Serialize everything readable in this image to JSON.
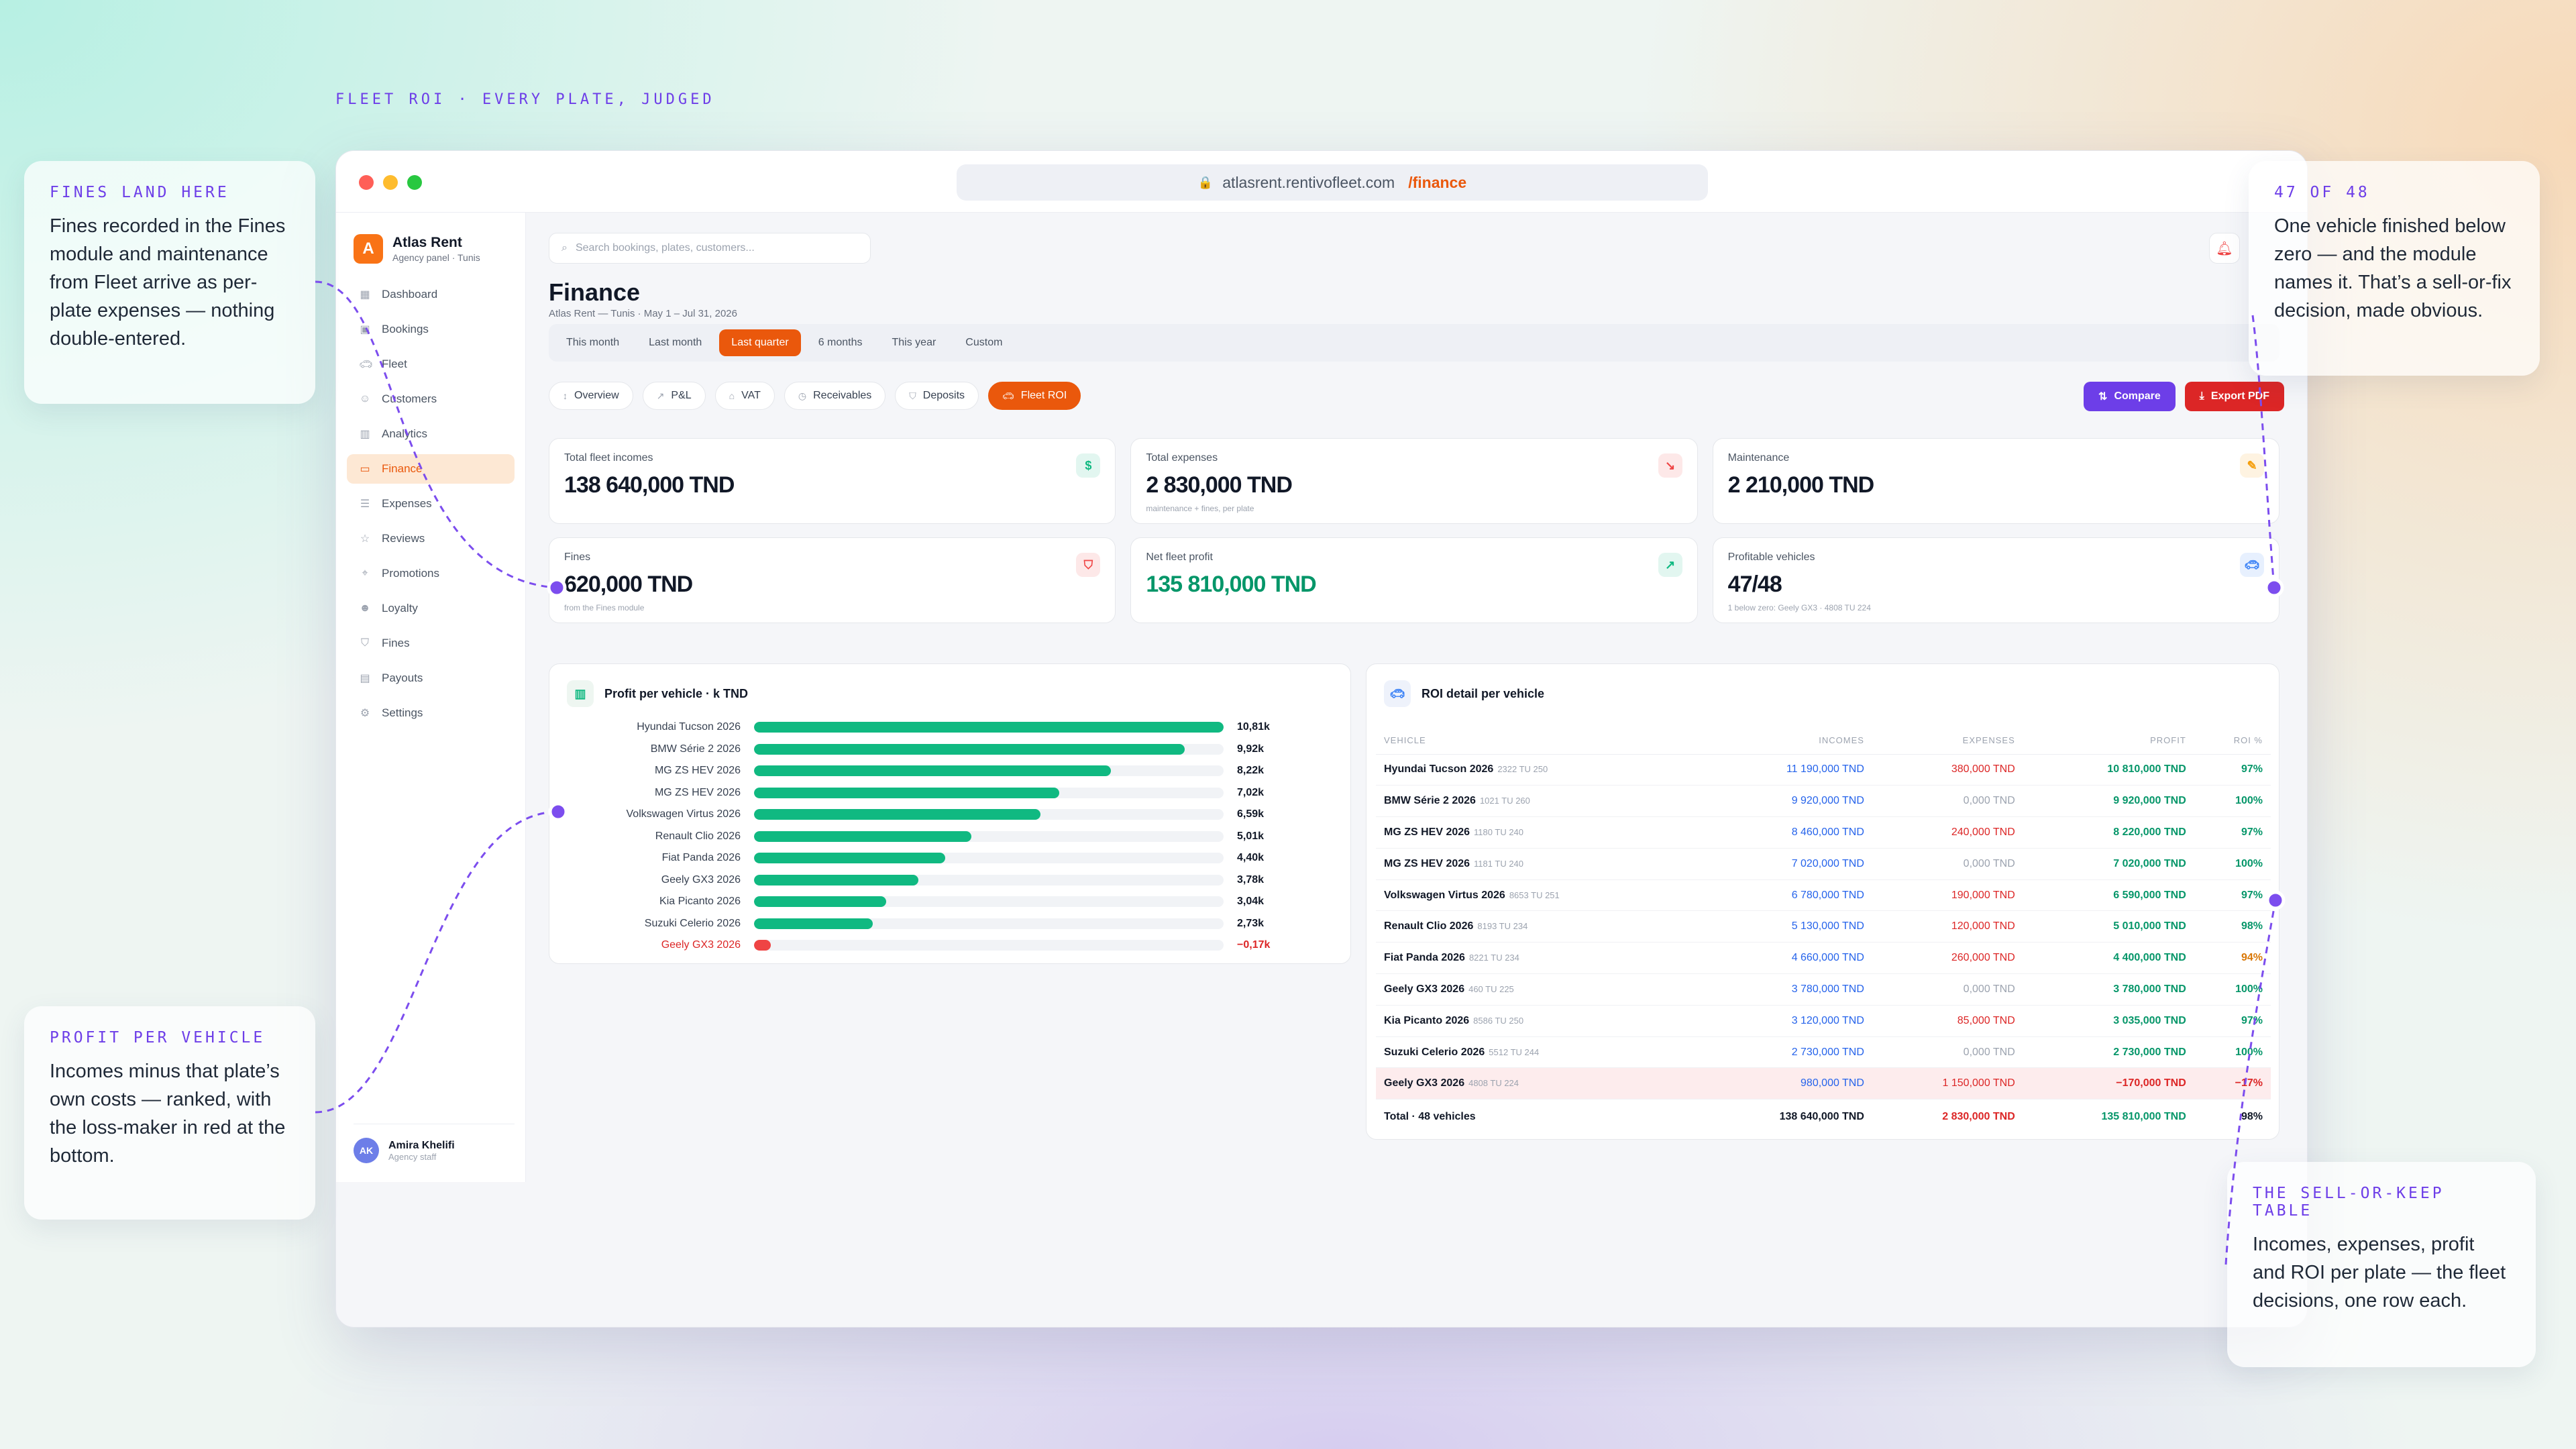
{
  "tagline": "FLEET ROI · EVERY PLATE, JUDGED",
  "browser": {
    "url_host": "atlasrent.rentivofleet.com",
    "url_path": "/finance",
    "lock_icon": "lock-icon"
  },
  "sidebar": {
    "brand_letter": "A",
    "brand_name": "Atlas Rent",
    "brand_sub": "Agency panel · Tunis",
    "items": [
      {
        "label": "Dashboard",
        "icon": "grid-icon"
      },
      {
        "label": "Bookings",
        "icon": "calendar-icon"
      },
      {
        "label": "Fleet",
        "icon": "car-icon"
      },
      {
        "label": "Customers",
        "icon": "users-icon"
      },
      {
        "label": "Analytics",
        "icon": "chart-icon"
      },
      {
        "label": "Finance",
        "icon": "wallet-icon",
        "active": true
      },
      {
        "label": "Expenses",
        "icon": "receipt-icon"
      },
      {
        "label": "Reviews",
        "icon": "star-icon"
      },
      {
        "label": "Promotions",
        "icon": "tag-icon"
      },
      {
        "label": "Loyalty",
        "icon": "person-icon"
      },
      {
        "label": "Fines",
        "icon": "shield-icon"
      },
      {
        "label": "Payouts",
        "icon": "document-icon"
      },
      {
        "label": "Settings",
        "icon": "gear-icon"
      }
    ],
    "user": {
      "initials": "AK",
      "name": "Amira Khelifi",
      "role": "Agency staff"
    }
  },
  "header": {
    "search_placeholder": "Search bookings, plates, customers...",
    "title": "Finance",
    "subtitle": "Atlas Rent — Tunis · May 1 – Jul 31, 2026"
  },
  "periods": [
    {
      "label": "This month"
    },
    {
      "label": "Last month"
    },
    {
      "label": "Last quarter",
      "active": true
    },
    {
      "label": "6 months"
    },
    {
      "label": "This year"
    },
    {
      "label": "Custom"
    }
  ],
  "tabs": [
    {
      "label": "Overview",
      "icon": "arrows-icon"
    },
    {
      "label": "P&L",
      "icon": "trend-icon"
    },
    {
      "label": "VAT",
      "icon": "bank-icon"
    },
    {
      "label": "Receivables",
      "icon": "clock-icon"
    },
    {
      "label": "Deposits",
      "icon": "shield-icon"
    },
    {
      "label": "Fleet ROI",
      "icon": "car-icon",
      "active": true
    }
  ],
  "actions": {
    "compare": "Compare",
    "export": "Export PDF"
  },
  "kpis": [
    {
      "label": "Total fleet incomes",
      "value": "138 640,000 TND",
      "hint": "",
      "icon": "dollar-icon",
      "accent": "#10b981"
    },
    {
      "label": "Total expenses",
      "value": "2 830,000 TND",
      "hint": "maintenance + fines, per plate",
      "icon": "trend-down-icon",
      "accent": "#ef4444"
    },
    {
      "label": "Maintenance",
      "value": "2 210,000 TND",
      "hint": "",
      "icon": "wrench-icon",
      "accent": "#f59e0b"
    },
    {
      "label": "Fines",
      "value": "620,000 TND",
      "hint": "from the Fines module",
      "icon": "shield-icon",
      "accent": "#ef4444"
    },
    {
      "label": "Net fleet profit",
      "value": "135 810,000 TND",
      "hint": "",
      "icon": "trend-up-icon",
      "accent": "#10b981",
      "green": true
    },
    {
      "label": "Profitable vehicles",
      "value": "47/48",
      "hint": "1 below zero: Geely GX3 · 4808 TU 224",
      "icon": "car-icon",
      "accent": "#3b82f6"
    }
  ],
  "profit_chart": {
    "title": "Profit per vehicle · k TND"
  },
  "chart_data": {
    "type": "bar",
    "orientation": "horizontal",
    "title": "Profit per vehicle · k TND",
    "unit": "k TND",
    "categories": [
      "Hyundai Tucson 2026",
      "BMW Série 2 2026",
      "MG ZS HEV 2026",
      "MG ZS HEV 2026",
      "Volkswagen Virtus 2026",
      "Renault Clio 2026",
      "Fiat Panda 2026",
      "Geely GX3 2026",
      "Kia Picanto 2026",
      "Suzuki Celerio 2026",
      "Geely GX3 2026"
    ],
    "values": [
      10.81,
      9.92,
      8.22,
      7.02,
      6.59,
      5.01,
      4.4,
      3.78,
      3.04,
      2.73,
      -0.17
    ],
    "value_labels": [
      "10,81k",
      "9,92k",
      "8,22k",
      "7,02k",
      "6,59k",
      "5,01k",
      "4,40k",
      "3,78k",
      "3,04k",
      "2,73k",
      "−0,17k"
    ],
    "max": 10.81,
    "colors": {
      "positive": "#10b981",
      "negative": "#ef4444"
    }
  },
  "roi_table": {
    "title": "ROI detail per vehicle",
    "columns": [
      "VEHICLE",
      "INCOMES",
      "EXPENSES",
      "PROFIT",
      "ROI %"
    ],
    "rows": [
      {
        "vehicle": "Hyundai Tucson 2026",
        "plate": "2322 TU 250",
        "incomes": "11 190,000 TND",
        "expenses": "380,000 TND",
        "profit": "10 810,000 TND",
        "roi": "97%"
      },
      {
        "vehicle": "BMW Série 2 2026",
        "plate": "1021 TU 260",
        "incomes": "9 920,000 TND",
        "expenses": "0,000 TND",
        "profit": "9 920,000 TND",
        "roi": "100%",
        "zero": true
      },
      {
        "vehicle": "MG ZS HEV 2026",
        "plate": "1180 TU 240",
        "incomes": "8 460,000 TND",
        "expenses": "240,000 TND",
        "profit": "8 220,000 TND",
        "roi": "97%"
      },
      {
        "vehicle": "MG ZS HEV 2026",
        "plate": "1181 TU 240",
        "incomes": "7 020,000 TND",
        "expenses": "0,000 TND",
        "profit": "7 020,000 TND",
        "roi": "100%",
        "zero": true
      },
      {
        "vehicle": "Volkswagen Virtus 2026",
        "plate": "8653 TU 251",
        "incomes": "6 780,000 TND",
        "expenses": "190,000 TND",
        "profit": "6 590,000 TND",
        "roi": "97%"
      },
      {
        "vehicle": "Renault Clio 2026",
        "plate": "8193 TU 234",
        "incomes": "5 130,000 TND",
        "expenses": "120,000 TND",
        "profit": "5 010,000 TND",
        "roi": "98%"
      },
      {
        "vehicle": "Fiat Panda 2026",
        "plate": "8221 TU 234",
        "incomes": "4 660,000 TND",
        "expenses": "260,000 TND",
        "profit": "4 400,000 TND",
        "roi": "94%",
        "warn": true
      },
      {
        "vehicle": "Geely GX3 2026",
        "plate": "460 TU 225",
        "incomes": "3 780,000 TND",
        "expenses": "0,000 TND",
        "profit": "3 780,000 TND",
        "roi": "100%",
        "zero": true
      },
      {
        "vehicle": "Kia Picanto 2026",
        "plate": "8586 TU 250",
        "incomes": "3 120,000 TND",
        "expenses": "85,000 TND",
        "profit": "3 035,000 TND",
        "roi": "97%"
      },
      {
        "vehicle": "Suzuki Celerio 2026",
        "plate": "5512 TU 244",
        "incomes": "2 730,000 TND",
        "expenses": "0,000 TND",
        "profit": "2 730,000 TND",
        "roi": "100%",
        "zero": true
      },
      {
        "vehicle": "Geely GX3 2026",
        "plate": "4808 TU 224",
        "incomes": "980,000 TND",
        "expenses": "1 150,000 TND",
        "profit": "−170,000 TND",
        "roi": "−17%",
        "loss": true
      }
    ],
    "total": {
      "label": "Total · 48 vehicles",
      "incomes": "138 640,000 TND",
      "expenses": "2 830,000 TND",
      "profit": "135 810,000 TND",
      "roi": "98%"
    }
  },
  "callouts": {
    "fines": {
      "title": "FINES LAND HERE",
      "body": "Fines recorded in the Fines module and maintenance from Fleet arrive as per-plate expenses — nothing double-entered."
    },
    "profit": {
      "title": "PROFIT PER VEHICLE",
      "body": "Incomes minus that plate’s own costs — ranked, with the loss-maker in red at the bottom."
    },
    "count": {
      "title": "47 OF 48",
      "body": "One vehicle finished below zero — and the module names it. That’s a sell-or-fix decision, made obvious."
    },
    "table": {
      "title": "THE SELL-OR-KEEP TABLE",
      "body": "Incomes, expenses, profit and ROI per plate — the fleet decisions, one row each."
    }
  }
}
